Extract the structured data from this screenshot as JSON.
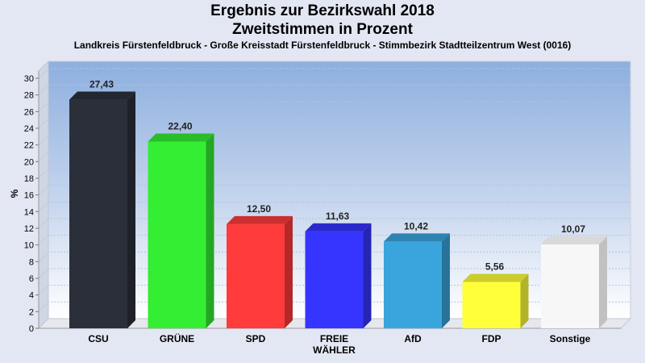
{
  "header": {
    "title_line1": "Ergebnis zur Bezirkswahl 2018",
    "title_line2": "Zweitstimmen in Prozent",
    "subtitle": "Landkreis Fürstenfeldbruck - Große Kreisstadt Fürstenfeldbruck - Stimmbezirk Stadtteilzentrum West (0016)"
  },
  "chart_data": {
    "type": "bar",
    "title": "Ergebnis zur Bezirkswahl 2018 Zweitstimmen in Prozent",
    "subtitle": "Landkreis Fürstenfeldbruck - Große Kreisstadt Fürstenfeldbruck - Stimmbezirk Stadtteilzentrum West (0016)",
    "xlabel": "",
    "ylabel": "%",
    "ylim": [
      0,
      30
    ],
    "yticks": [
      0,
      2,
      4,
      6,
      8,
      10,
      12,
      14,
      16,
      18,
      20,
      22,
      24,
      26,
      28,
      30
    ],
    "grid": true,
    "categories": [
      {
        "label": [
          "CSU"
        ],
        "value": 27.43,
        "value_label": "27,43",
        "color": "#2b2f3a"
      },
      {
        "label": [
          "GRÜNE"
        ],
        "value": 22.4,
        "value_label": "22,40",
        "color": "#33ee33"
      },
      {
        "label": [
          "SPD"
        ],
        "value": 12.5,
        "value_label": "12,50",
        "color": "#ff3b3b"
      },
      {
        "label": [
          "FREIE",
          "WÄHLER"
        ],
        "value": 11.63,
        "value_label": "11,63",
        "color": "#3535ff"
      },
      {
        "label": [
          "AfD"
        ],
        "value": 10.42,
        "value_label": "10,42",
        "color": "#3aa5dc"
      },
      {
        "label": [
          "FDP"
        ],
        "value": 5.56,
        "value_label": "5,56",
        "color": "#ffff3a"
      },
      {
        "label": [
          "Sonstige"
        ],
        "value": 10.07,
        "value_label": "10,07",
        "color": "#f7f7f7"
      }
    ]
  }
}
